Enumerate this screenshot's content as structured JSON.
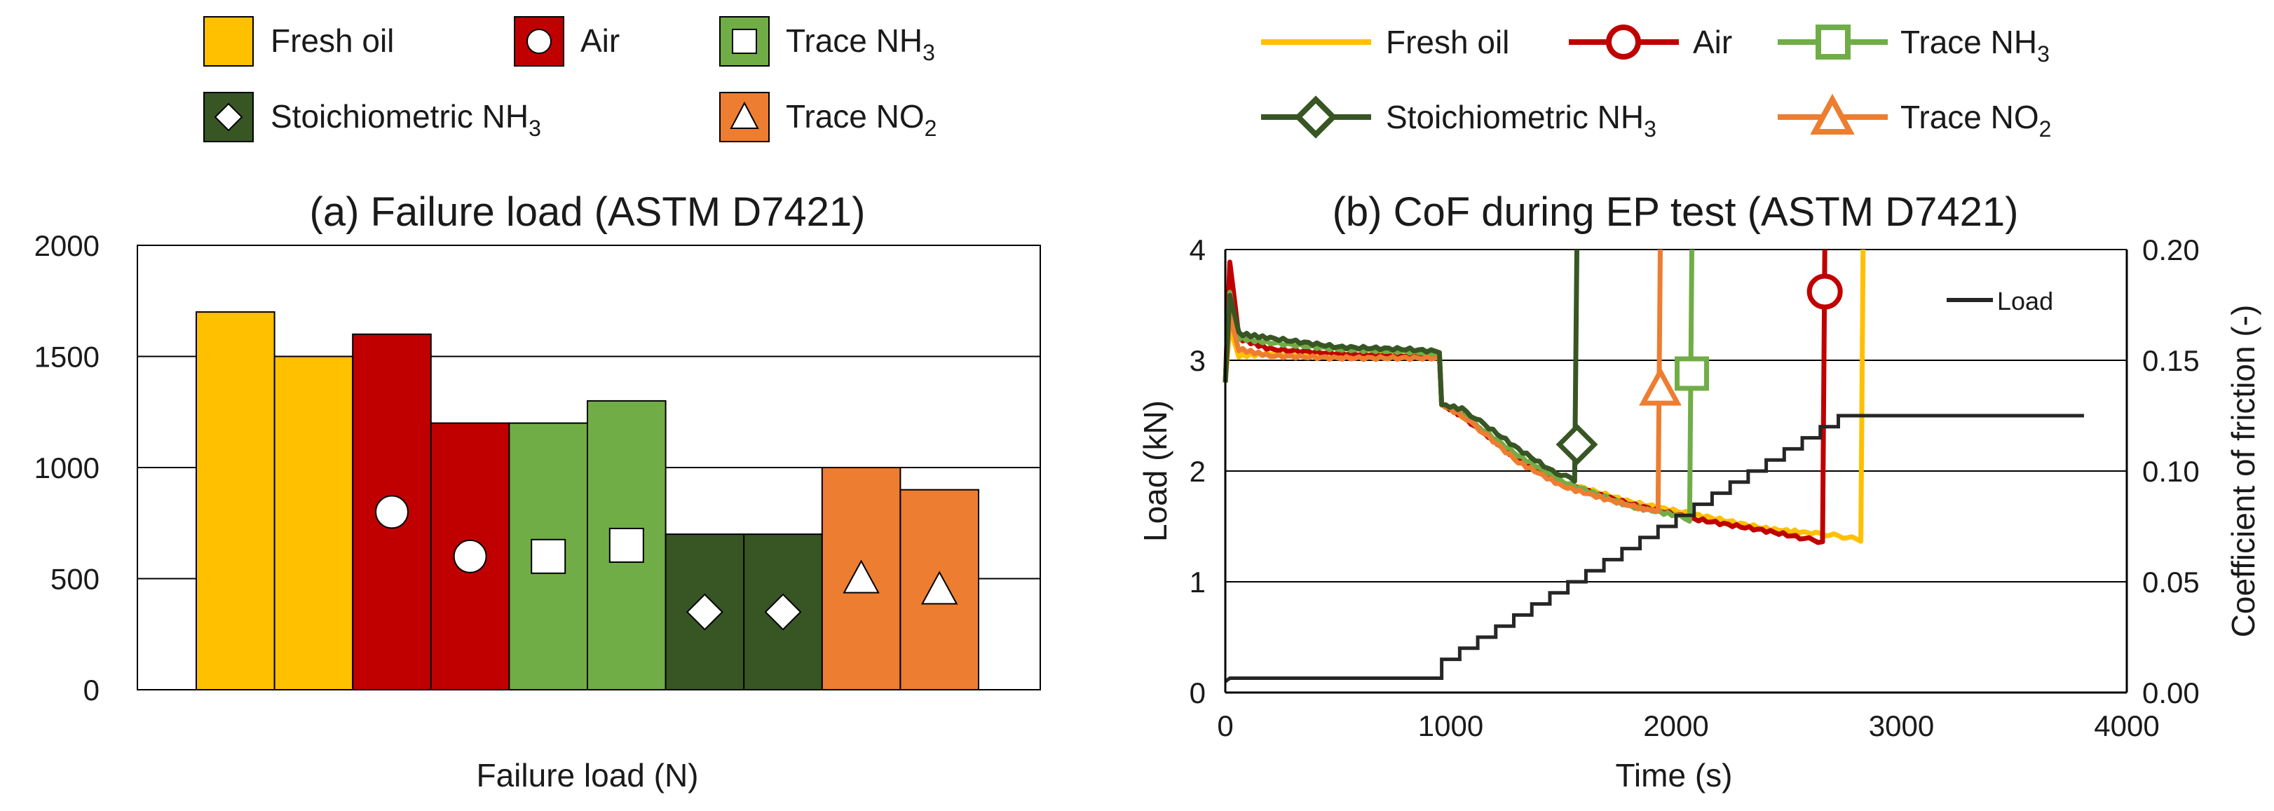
{
  "colors": {
    "fresh_oil": "#FFC000",
    "air": "#C00000",
    "trace_nh3": "#70AD47",
    "stoich_nh3": "#375623",
    "trace_no2": "#ED7D31",
    "load_line": "#262626",
    "axis": "#000000",
    "grid": "#000000"
  },
  "legend_a": {
    "fresh_oil": "Fresh oil",
    "air": "Air",
    "trace_nh3_main": "Trace NH",
    "trace_nh3_sub": "3",
    "stoich_main": "Stoichiometric NH",
    "stoich_sub": "3",
    "trace_no2_main": "Trace NO",
    "trace_no2_sub": "2"
  },
  "legend_b": {
    "fresh_oil": "Fresh oil",
    "air": "Air",
    "trace_nh3_main": "Trace NH",
    "trace_nh3_sub": "3",
    "stoich_main": "Stoichiometric NH",
    "stoich_sub": "3",
    "trace_no2_main": "Trace NO",
    "trace_no2_sub": "2"
  },
  "chart_data": [
    {
      "type": "bar",
      "title": "(a) Failure load (ASTM D7421)",
      "xlabel": "Failure load (N)",
      "ylabel": "",
      "ylim": [
        0,
        2000
      ],
      "yticks": [
        0,
        500,
        1000,
        1500,
        2000
      ],
      "ytick_labels": [
        "0",
        "500",
        "1000",
        "1500",
        "2000"
      ],
      "grid": true,
      "bars": [
        {
          "group": "Fresh oil",
          "color_key": "fresh_oil",
          "value": 1700,
          "marker": "none",
          "marker_value": null
        },
        {
          "group": "Fresh oil",
          "color_key": "fresh_oil",
          "value": 1500,
          "marker": "none",
          "marker_value": null
        },
        {
          "group": "Air",
          "color_key": "air",
          "value": 1600,
          "marker": "circle",
          "marker_value": 800
        },
        {
          "group": "Air",
          "color_key": "air",
          "value": 1200,
          "marker": "circle",
          "marker_value": 600
        },
        {
          "group": "Trace NH3",
          "color_key": "trace_nh3",
          "value": 1200,
          "marker": "square",
          "marker_value": 600
        },
        {
          "group": "Trace NH3",
          "color_key": "trace_nh3",
          "value": 1300,
          "marker": "square",
          "marker_value": 650
        },
        {
          "group": "Stoichiometric NH3",
          "color_key": "stoich_nh3",
          "value": 700,
          "marker": "diamond",
          "marker_value": 350
        },
        {
          "group": "Stoichiometric NH3",
          "color_key": "stoich_nh3",
          "value": 700,
          "marker": "diamond",
          "marker_value": 350
        },
        {
          "group": "Trace NO2",
          "color_key": "trace_no2",
          "value": 1000,
          "marker": "triangle",
          "marker_value": 500
        },
        {
          "group": "Trace NO2",
          "color_key": "trace_no2",
          "value": 900,
          "marker": "triangle",
          "marker_value": 450
        }
      ]
    },
    {
      "type": "line",
      "title": "(b) CoF during EP test (ASTM D7421)",
      "xlabel": "Time (s)",
      "ylabel": "Load (kN)",
      "y2label": "Coefficient of friction (-)",
      "xlim": [
        0,
        4000
      ],
      "ylim": [
        0,
        4
      ],
      "y2lim": [
        0,
        0.2
      ],
      "xticks": [
        0,
        1000,
        2000,
        3000,
        4000
      ],
      "xtick_labels": [
        "0",
        "1000",
        "2000",
        "3000",
        "4000"
      ],
      "yticks": [
        0,
        1,
        2,
        3,
        4
      ],
      "ytick_labels": [
        "0",
        "1",
        "2",
        "3",
        "4"
      ],
      "y2ticks": [
        0,
        0.05,
        0.1,
        0.15,
        0.2
      ],
      "y2tick_labels": [
        "0.00",
        "0.05",
        "0.10",
        "0.15",
        "0.20"
      ],
      "grid": true,
      "load_legend": "Load",
      "load_series": {
        "name": "Load",
        "start_time": 0,
        "start_load": 0.1,
        "step1_time": 960,
        "step1_load": 0.3,
        "step_interval_s": 80,
        "step_increment_kN": 0.1,
        "end_time": 3810,
        "end_load": 2.5
      },
      "cof_series": [
        {
          "name": "Fresh oil",
          "color_key": "fresh_oil",
          "marker": "none",
          "failure_time": 2830,
          "marker_cof": null,
          "x": [
            0,
            20,
            60,
            200,
            500,
            800,
            950,
            960,
            1050,
            1150,
            1300,
            1500,
            1800,
            2100,
            2400,
            2600,
            2700,
            2820,
            2830
          ],
          "y": [
            0.14,
            0.165,
            0.152,
            0.153,
            0.152,
            0.152,
            0.152,
            0.13,
            0.125,
            0.117,
            0.105,
            0.095,
            0.086,
            0.08,
            0.074,
            0.072,
            0.071,
            0.069,
            0.2
          ]
        },
        {
          "name": "Air",
          "color_key": "air",
          "marker": "circle",
          "failure_time": 2660,
          "marker_cof": 0.181,
          "x": [
            0,
            20,
            60,
            200,
            500,
            800,
            950,
            960,
            1050,
            1150,
            1300,
            1500,
            1800,
            2100,
            2400,
            2550,
            2650,
            2660
          ],
          "y": [
            0.14,
            0.195,
            0.16,
            0.155,
            0.153,
            0.152,
            0.152,
            0.13,
            0.125,
            0.117,
            0.105,
            0.094,
            0.085,
            0.078,
            0.073,
            0.07,
            0.068,
            0.2
          ]
        },
        {
          "name": "Trace NH3",
          "color_key": "trace_nh3",
          "marker": "square",
          "failure_time": 2070,
          "marker_cof": 0.144,
          "x": [
            0,
            20,
            60,
            200,
            500,
            800,
            950,
            960,
            1050,
            1150,
            1300,
            1500,
            1800,
            2000,
            2060,
            2070
          ],
          "y": [
            0.14,
            0.18,
            0.16,
            0.158,
            0.155,
            0.154,
            0.153,
            0.13,
            0.126,
            0.118,
            0.107,
            0.095,
            0.084,
            0.08,
            0.078,
            0.2
          ]
        },
        {
          "name": "Stoichiometric NH3",
          "color_key": "stoich_nh3",
          "marker": "diamond",
          "failure_time": 1560,
          "marker_cof": 0.112,
          "x": [
            0,
            20,
            60,
            200,
            500,
            800,
            950,
            960,
            1050,
            1150,
            1300,
            1450,
            1550,
            1560
          ],
          "y": [
            0.14,
            0.18,
            0.162,
            0.16,
            0.156,
            0.155,
            0.154,
            0.13,
            0.128,
            0.121,
            0.11,
            0.1,
            0.096,
            0.2
          ]
        },
        {
          "name": "Trace NO2",
          "color_key": "trace_no2",
          "marker": "triangle",
          "failure_time": 1930,
          "marker_cof": 0.137,
          "x": [
            0,
            20,
            60,
            200,
            500,
            800,
            950,
            960,
            1050,
            1150,
            1300,
            1500,
            1700,
            1850,
            1920,
            1930
          ],
          "y": [
            0.14,
            0.17,
            0.155,
            0.152,
            0.151,
            0.151,
            0.151,
            0.13,
            0.125,
            0.117,
            0.104,
            0.093,
            0.087,
            0.083,
            0.082,
            0.2
          ]
        }
      ]
    }
  ]
}
